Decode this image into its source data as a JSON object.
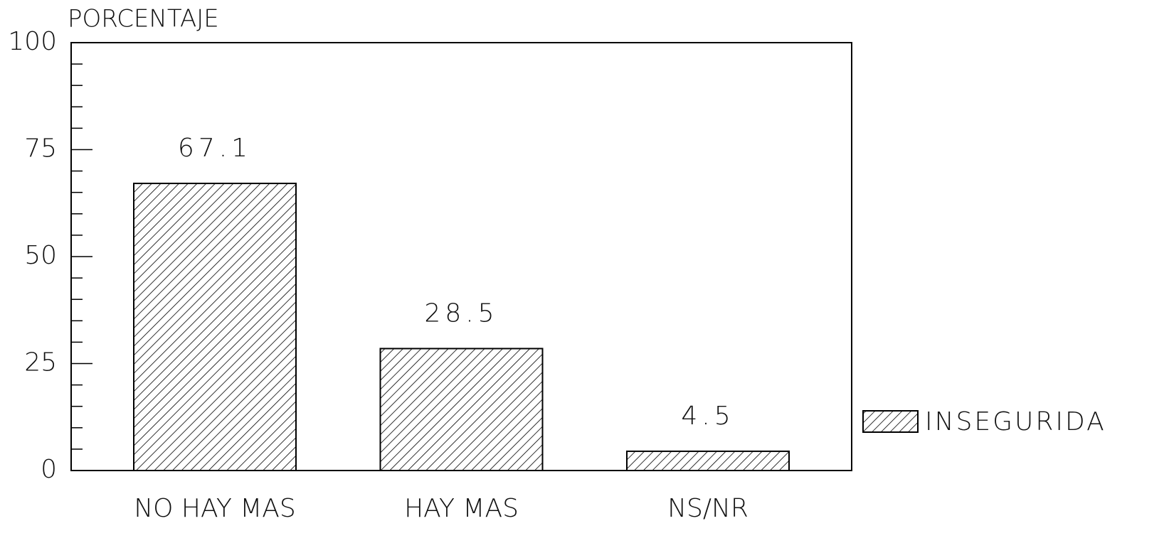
{
  "chart_data": {
    "type": "bar",
    "y_axis_label": "PORCENTAJE",
    "categories": [
      "NO HAY MAS",
      "HAY MAS",
      "NS/NR"
    ],
    "series": [
      {
        "name": "INSEGURIDA",
        "color": "#000000",
        "values": [
          67.1,
          28.5,
          4.5
        ]
      }
    ],
    "ylim": [
      0,
      100
    ],
    "yticks": [
      0,
      25,
      50,
      75,
      100
    ],
    "grid": false,
    "legend": "right"
  }
}
